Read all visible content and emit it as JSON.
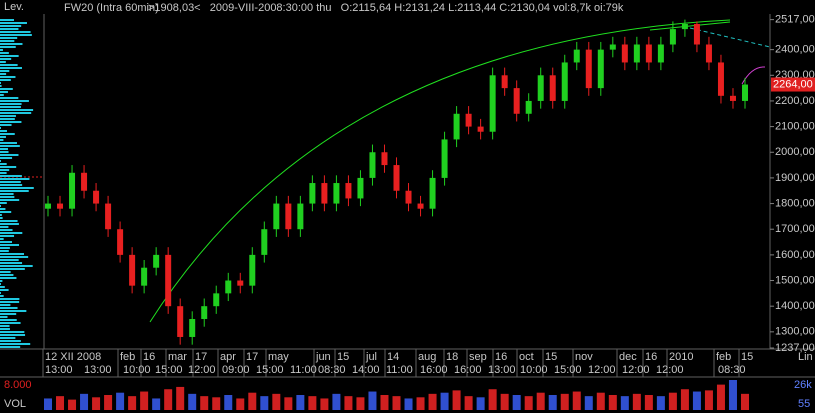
{
  "chart_data": {
    "type": "candlestick",
    "title": "FW20 (Intra 60min)",
    "header": ">1908,03<   2009-VIII-2008:30:00 thu   O:2115,64 H:2131,24 L:2113,44 C:2130,04 vol:8,7k oi:79k",
    "left_label": "Lev.",
    "scale_label": "Lin",
    "up_color": "#20d020",
    "down_color": "#e82020",
    "open": [
      1780,
      1800,
      1780,
      1920,
      1850,
      1800,
      1700,
      1600,
      1480,
      1550,
      1600,
      1400,
      1280,
      1350,
      1400,
      1450,
      1500,
      1480,
      1600,
      1700,
      1800,
      1700,
      1800,
      1880,
      1800,
      1880,
      1820,
      1900,
      2000,
      1950,
      1850,
      1800,
      1780,
      1900,
      2050,
      2150,
      2100,
      2080,
      2300,
      2250,
      2150,
      2200,
      2300,
      2200,
      2350,
      2400,
      2250,
      2400,
      2420,
      2350,
      2420,
      2350,
      2420,
      2480,
      2500,
      2420,
      2350,
      2220,
      2200
    ],
    "high": [
      1830,
      1830,
      1950,
      1950,
      1880,
      1830,
      1730,
      1630,
      1580,
      1630,
      1630,
      1430,
      1380,
      1430,
      1480,
      1530,
      1530,
      1630,
      1730,
      1830,
      1830,
      1830,
      1910,
      1910,
      1910,
      1910,
      1930,
      2030,
      2030,
      1980,
      1880,
      1830,
      1930,
      2080,
      2180,
      2180,
      2130,
      2330,
      2330,
      2280,
      2230,
      2330,
      2330,
      2380,
      2430,
      2430,
      2430,
      2450,
      2450,
      2450,
      2450,
      2450,
      2510,
      2517,
      2510,
      2450,
      2380,
      2250,
      2290
    ],
    "low": [
      1750,
      1750,
      1750,
      1820,
      1770,
      1670,
      1570,
      1450,
      1450,
      1520,
      1370,
      1250,
      1250,
      1320,
      1370,
      1420,
      1450,
      1450,
      1570,
      1670,
      1670,
      1670,
      1770,
      1770,
      1770,
      1790,
      1790,
      1870,
      1920,
      1820,
      1770,
      1750,
      1750,
      1870,
      2020,
      2070,
      2050,
      2050,
      2220,
      2120,
      2120,
      2170,
      2170,
      2170,
      2320,
      2220,
      2220,
      2370,
      2320,
      2320,
      2320,
      2320,
      2390,
      2450,
      2390,
      2320,
      2190,
      2170,
      2170
    ],
    "close": [
      1800,
      1780,
      1920,
      1850,
      1800,
      1700,
      1600,
      1480,
      1550,
      1600,
      1400,
      1280,
      1350,
      1400,
      1450,
      1500,
      1480,
      1600,
      1700,
      1800,
      1700,
      1800,
      1880,
      1800,
      1880,
      1820,
      1900,
      2000,
      1950,
      1850,
      1800,
      1780,
      1900,
      2050,
      2150,
      2100,
      2080,
      2300,
      2250,
      2150,
      2200,
      2300,
      2200,
      2350,
      2400,
      2250,
      2400,
      2420,
      2350,
      2420,
      2350,
      2420,
      2480,
      2500,
      2420,
      2350,
      2220,
      2200,
      2264
    ],
    "volume": [
      10,
      12,
      9,
      14,
      11,
      13,
      15,
      12,
      16,
      10,
      18,
      20,
      14,
      12,
      11,
      13,
      10,
      15,
      12,
      14,
      11,
      13,
      12,
      10,
      14,
      12,
      11,
      16,
      13,
      12,
      10,
      11,
      14,
      15,
      17,
      12,
      11,
      18,
      14,
      13,
      12,
      15,
      13,
      14,
      16,
      12,
      15,
      13,
      12,
      14,
      13,
      12,
      15,
      18,
      16,
      17,
      22,
      26,
      14
    ],
    "last_label": "2264,00",
    "ylim": [
      1237,
      2535
    ],
    "yticks": [
      {
        "value": 1237,
        "label": "1237,00"
      },
      {
        "value": 1300,
        "label": "1300,00"
      },
      {
        "value": 1400,
        "label": "1400,00"
      },
      {
        "value": 1500,
        "label": "1500,00"
      },
      {
        "value": 1600,
        "label": "1600,00"
      },
      {
        "value": 1700,
        "label": "1700,00"
      },
      {
        "value": 1800,
        "label": "1800,00"
      },
      {
        "value": 1900,
        "label": "1900,00"
      },
      {
        "value": 2000,
        "label": "2000,00"
      },
      {
        "value": 2100,
        "label": "2100,00"
      },
      {
        "value": 2200,
        "label": "2200,00"
      },
      {
        "value": 2300,
        "label": "2300,00"
      },
      {
        "value": 2400,
        "label": "2400,00"
      },
      {
        "value": 2517,
        "label": "2517,00"
      }
    ],
    "x_labels_top": [
      "12 XII 2008",
      "feb",
      "16",
      "mar",
      "17",
      "apr",
      "17",
      "may",
      "jun",
      "15",
      "jul",
      "14",
      "aug",
      "18",
      "sep",
      "16",
      "oct",
      "15",
      "nov",
      "dec",
      "16",
      "2010",
      "feb",
      "15"
    ],
    "x_labels_bottom": [
      "13:00",
      "13:00",
      "10:00",
      "15:00",
      "12:00",
      "09:00",
      "15:00",
      "11:00",
      "08:30",
      "14:00",
      "11:00",
      "16:00",
      "16:00",
      "13:00",
      "10:00",
      "15:00",
      "12:00",
      "12:00",
      "12:00",
      "08:30"
    ],
    "volume_panel": {
      "title": "VOL",
      "left_value": "8.000",
      "top_label": "26k",
      "bottom_label": "55",
      "ylim": [
        0,
        26
      ]
    }
  }
}
